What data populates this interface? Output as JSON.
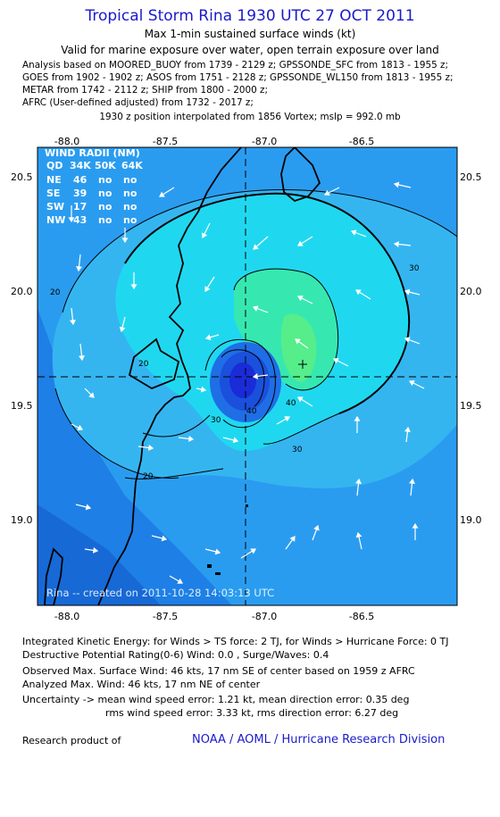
{
  "header": {
    "title": "Tropical Storm Rina 1930 UTC 27 OCT 2011",
    "subtitle": "Max 1-min sustained surface winds (kt)",
    "valid": "Valid for marine exposure over water, open terrain exposure over land",
    "sources": [
      "Analysis based on MOORED_BUOY from 1739 - 2129 z; GPSSONDE_SFC from 1813 - 1955 z;",
      "GOES from 1902 - 1902 z; ASOS from 1751 - 2128 z; GPSSONDE_WL150 from 1813 - 1955 z;",
      "METAR from 1742 - 2112 z; SHIP from 1800 - 2000 z;",
      "AFRC (User-defined adjusted) from 1732 - 2017 z;"
    ],
    "interp": "1930 z position interpolated from 1856 Vortex; mslp = 992.0 mb"
  },
  "map": {
    "lon_ticks": [
      "-88.0",
      "-87.5",
      "-87.0",
      "-86.5"
    ],
    "lat_ticks": [
      "20.5",
      "20.0",
      "19.5",
      "19.0"
    ],
    "contour_labels": [
      "20",
      "20",
      "30",
      "30",
      "30",
      "40",
      "40",
      "20"
    ],
    "credit": "Rina -- created on 2011-10-28 14:03:13 UTC",
    "center": {
      "lon": -87.13,
      "lat": 19.62
    },
    "max_marker": {
      "lon": -86.88,
      "lat": 19.68
    },
    "colors": {
      "bg_low": "#1e7fe6",
      "bg_mid": "#2a9cf0",
      "ring_20": "#35b5f0",
      "ring_30": "#1fd8f0",
      "ring_40": "#36e8b0",
      "ring_45": "#55ee8a",
      "core": "#1a2bd8"
    }
  },
  "wind_radii": {
    "title": "WIND RADII (NM)",
    "headers": [
      "QD",
      "34K",
      "50K",
      "64K"
    ],
    "rows": [
      [
        "NE",
        "46",
        "no",
        "no"
      ],
      [
        "SE",
        "39",
        "no",
        "no"
      ],
      [
        "SW",
        "17",
        "no",
        "no"
      ],
      [
        "NW",
        "43",
        "no",
        "no"
      ]
    ]
  },
  "footer": {
    "ike": "Integrated Kinetic Energy:  for Winds > TS force: 2 TJ,  for Winds > Hurricane Force: 0 TJ",
    "dpr": "Destructive Potential Rating(0-6)   Wind: 0.0 , Surge/Waves: 0.4",
    "observed": "Observed Max. Surface Wind: 46 kts, 17 nm SE of center based on 1959 z AFRC",
    "analyzed": "Analyzed Max. Wind: 46 kts, 17 nm NE of center",
    "uncert1": "Uncertainty -> mean wind speed error: 1.21 kt,   mean direction error: 0.35 deg",
    "uncert2": "rms wind speed error: 3.33 kt,   rms direction error: 6.27 deg",
    "research": "Research product of",
    "noaa": "NOAA / AOML / Hurricane Research Division"
  }
}
